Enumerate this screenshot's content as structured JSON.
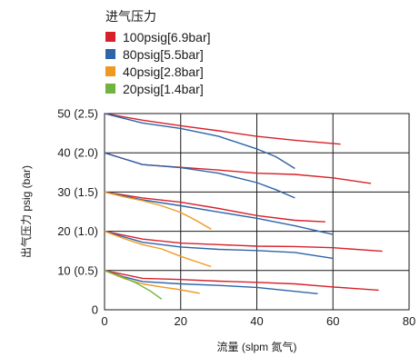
{
  "legend": {
    "title": "进气压力",
    "items": [
      {
        "label": "100psig[6.9bar]",
        "color": "#d7212a"
      },
      {
        "label": "80psig[5.5bar]",
        "color": "#2e64a8"
      },
      {
        "label": "40psig[2.8bar]",
        "color": "#ee9a22"
      },
      {
        "label": "20psig[1.4bar]",
        "color": "#6eb43f"
      }
    ]
  },
  "chart_data": {
    "type": "line",
    "xlabel": "流量 (slpm 氮气)",
    "ylabel": "出气压力 psig (bar)",
    "xlim": [
      0,
      80
    ],
    "ylim": [
      0,
      50
    ],
    "x_ticks": [
      0,
      20,
      40,
      60,
      80
    ],
    "y_ticks": [
      {
        "value": 0,
        "label": "0"
      },
      {
        "value": 10,
        "label": "10 (0.5)"
      },
      {
        "value": 20,
        "label": "20 (1.0)"
      },
      {
        "value": 30,
        "label": "30 (1.5)"
      },
      {
        "value": 40,
        "label": "40 (2.0)"
      },
      {
        "value": 50,
        "label": "50 (2.5)"
      }
    ],
    "grid": true,
    "series": [
      {
        "name": "100psig[6.9bar]",
        "color": "#d7212a",
        "x": [
          0,
          10,
          20,
          30,
          40,
          50,
          62
        ],
        "y": [
          50,
          48.3,
          46.9,
          45.6,
          44.2,
          43.2,
          42.2
        ]
      },
      {
        "name": "80psig[5.5bar]",
        "color": "#2e64a8",
        "x": [
          0,
          10,
          20,
          30,
          40,
          45,
          50
        ],
        "y": [
          50,
          47.6,
          46.2,
          44.2,
          41,
          39,
          36
        ]
      },
      {
        "name": "100psig[6.9bar]",
        "color": "#d7212a",
        "x": [
          0,
          10,
          20,
          30,
          40,
          50,
          60,
          70
        ],
        "y": [
          40,
          37,
          36.3,
          35.6,
          34.8,
          34.5,
          33.6,
          32.2
        ]
      },
      {
        "name": "80psig[5.5bar]",
        "color": "#2e64a8",
        "x": [
          0,
          10,
          20,
          30,
          40,
          45,
          50
        ],
        "y": [
          40,
          37,
          36.2,
          34.8,
          32.4,
          30.6,
          28.5
        ]
      },
      {
        "name": "100psig[6.9bar]",
        "color": "#d7212a",
        "x": [
          0,
          10,
          20,
          30,
          40,
          50,
          58
        ],
        "y": [
          30,
          28.5,
          27.4,
          25.8,
          24,
          22.8,
          22.4
        ]
      },
      {
        "name": "80psig[5.5bar]",
        "color": "#2e64a8",
        "x": [
          0,
          10,
          20,
          30,
          40,
          50,
          60
        ],
        "y": [
          30,
          28,
          26.5,
          24.9,
          23.3,
          21.4,
          19.2
        ]
      },
      {
        "name": "40psig[2.8bar]",
        "color": "#ee9a22",
        "x": [
          0,
          5,
          10,
          15,
          20,
          24,
          28
        ],
        "y": [
          30,
          28.8,
          27.8,
          26.5,
          24.8,
          22.8,
          20.5
        ]
      },
      {
        "name": "100psig[6.9bar]",
        "color": "#d7212a",
        "x": [
          0,
          10,
          20,
          30,
          40,
          50,
          60,
          73
        ],
        "y": [
          20,
          18,
          17,
          16.6,
          16.2,
          16.1,
          15.8,
          14.9
        ]
      },
      {
        "name": "80psig[5.5bar]",
        "color": "#2e64a8",
        "x": [
          0,
          10,
          20,
          30,
          40,
          50,
          60
        ],
        "y": [
          20,
          17.2,
          16,
          15.4,
          15.1,
          14.6,
          13.1
        ]
      },
      {
        "name": "40psig[2.8bar]",
        "color": "#ee9a22",
        "x": [
          0,
          5,
          10,
          15,
          20,
          24,
          28
        ],
        "y": [
          20,
          18.2,
          16.6,
          15.5,
          13.6,
          12.3,
          11
        ]
      },
      {
        "name": "100psig[6.9bar]",
        "color": "#d7212a",
        "x": [
          0,
          5,
          10,
          20,
          30,
          40,
          50,
          60,
          72
        ],
        "y": [
          10,
          9,
          8,
          7.7,
          7.3,
          7,
          6.6,
          5.8,
          5
        ]
      },
      {
        "name": "80psig[5.5bar]",
        "color": "#2e64a8",
        "x": [
          0,
          5,
          10,
          20,
          30,
          40,
          56
        ],
        "y": [
          10,
          8.4,
          7.2,
          6.6,
          6.2,
          5.7,
          4.1
        ]
      },
      {
        "name": "40psig[2.8bar]",
        "color": "#ee9a22",
        "x": [
          0,
          5,
          10,
          15,
          20,
          25
        ],
        "y": [
          10,
          8,
          6.6,
          5.8,
          5.1,
          4.2
        ]
      },
      {
        "name": "20psig[1.4bar]",
        "color": "#6eb43f",
        "x": [
          0,
          4,
          8,
          12,
          15
        ],
        "y": [
          10,
          8.6,
          7,
          4.8,
          2.7
        ]
      }
    ]
  }
}
